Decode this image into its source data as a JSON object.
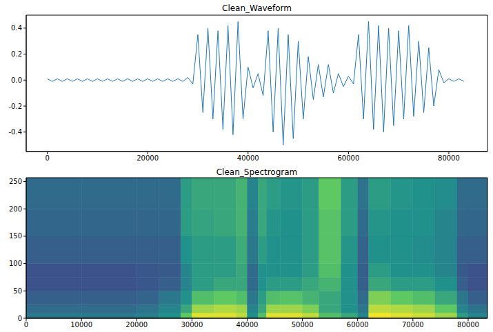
{
  "chart_data": [
    {
      "type": "line",
      "title": "Clean_Waveform",
      "color": "#1f77b4",
      "grid": false,
      "x": [
        0,
        1000,
        2000,
        3000,
        4000,
        5000,
        6000,
        7000,
        8000,
        9000,
        10000,
        11000,
        12000,
        13000,
        14000,
        15000,
        16000,
        17000,
        18000,
        19000,
        20000,
        21000,
        22000,
        23000,
        24000,
        25000,
        26000,
        27000,
        28000,
        29000,
        30000,
        31000,
        32000,
        33000,
        34000,
        35000,
        36000,
        37000,
        38000,
        39000,
        40000,
        41000,
        42000,
        43000,
        44000,
        45000,
        46000,
        47000,
        48000,
        49000,
        50000,
        51000,
        52000,
        53000,
        54000,
        55000,
        56000,
        57000,
        58000,
        59000,
        60000,
        61000,
        62000,
        63000,
        64000,
        65000,
        66000,
        67000,
        68000,
        69000,
        70000,
        71000,
        72000,
        73000,
        74000,
        75000,
        76000,
        77000,
        78000,
        79000,
        80000,
        81000,
        82000,
        83000
      ],
      "values": [
        0.01,
        -0.01,
        0.01,
        -0.01,
        0.01,
        -0.01,
        0.01,
        -0.01,
        0.01,
        -0.01,
        0.01,
        -0.01,
        0.01,
        -0.01,
        0.01,
        -0.01,
        0.01,
        -0.01,
        0.01,
        -0.01,
        0.01,
        -0.01,
        0.01,
        -0.01,
        0.01,
        -0.01,
        0.01,
        -0.01,
        0.02,
        -0.03,
        0.35,
        -0.25,
        0.4,
        -0.3,
        0.38,
        -0.38,
        0.42,
        -0.42,
        0.45,
        -0.3,
        0.1,
        -0.06,
        0.05,
        -0.12,
        0.38,
        -0.4,
        0.4,
        -0.5,
        0.35,
        -0.45,
        0.3,
        -0.3,
        0.18,
        -0.15,
        0.12,
        -0.13,
        0.12,
        -0.1,
        0.05,
        -0.05,
        0.03,
        -0.03,
        0.35,
        -0.3,
        0.45,
        -0.38,
        0.42,
        -0.4,
        0.4,
        -0.35,
        0.38,
        -0.3,
        0.42,
        -0.28,
        0.3,
        -0.25,
        0.25,
        -0.2,
        0.08,
        -0.02,
        0.01,
        -0.01,
        0.01,
        -0.01
      ],
      "xlim": [
        -4200,
        87700
      ],
      "xticks": [
        0,
        20000,
        40000,
        60000,
        80000
      ],
      "ylim": [
        -0.55,
        0.5
      ],
      "yticks": [
        -0.4,
        -0.2,
        {
          "value": 0,
          "label": "0.0"
        },
        0.2,
        0.4
      ]
    },
    {
      "type": "heatmap",
      "title": "Clean_Spectrogram",
      "grid": false,
      "x_bins": [
        0,
        10000,
        20000,
        24000,
        28000,
        30000,
        34000,
        38000,
        40000,
        42000,
        43500,
        46000,
        50000,
        53000,
        57000,
        60000,
        62000,
        66000,
        70000,
        74000,
        78000,
        80000,
        83500
      ],
      "y_bins": [
        0,
        10,
        25,
        50,
        75,
        100,
        150,
        200,
        257
      ],
      "cells": [
        [
          0.4,
          0.35,
          0.3,
          0.25,
          0.25,
          0.3,
          0.33,
          0.35
        ],
        [
          0.4,
          0.35,
          0.3,
          0.25,
          0.25,
          0.3,
          0.33,
          0.35
        ],
        [
          0.42,
          0.38,
          0.32,
          0.27,
          0.27,
          0.3,
          0.33,
          0.35
        ],
        [
          0.5,
          0.45,
          0.4,
          0.3,
          0.28,
          0.3,
          0.33,
          0.35
        ],
        [
          0.75,
          0.6,
          0.5,
          0.45,
          0.45,
          0.5,
          0.55,
          0.55
        ],
        [
          0.95,
          0.85,
          0.7,
          0.55,
          0.55,
          0.55,
          0.58,
          0.6
        ],
        [
          0.95,
          0.88,
          0.75,
          0.6,
          0.55,
          0.55,
          0.6,
          0.6
        ],
        [
          0.9,
          0.85,
          0.7,
          0.6,
          0.6,
          0.62,
          0.65,
          0.65
        ],
        [
          0.5,
          0.45,
          0.4,
          0.35,
          0.35,
          0.4,
          0.42,
          0.45
        ],
        [
          0.7,
          0.6,
          0.55,
          0.5,
          0.5,
          0.55,
          0.6,
          0.6
        ],
        [
          0.95,
          0.85,
          0.7,
          0.55,
          0.5,
          0.5,
          0.52,
          0.55
        ],
        [
          0.95,
          0.85,
          0.72,
          0.55,
          0.5,
          0.5,
          0.5,
          0.52
        ],
        [
          0.9,
          0.8,
          0.65,
          0.6,
          0.55,
          0.55,
          0.55,
          0.55
        ],
        [
          0.7,
          0.6,
          0.6,
          0.65,
          0.7,
          0.72,
          0.72,
          0.75
        ],
        [
          0.6,
          0.5,
          0.5,
          0.5,
          0.5,
          0.52,
          0.55,
          0.55
        ],
        [
          0.45,
          0.4,
          0.35,
          0.3,
          0.3,
          0.32,
          0.35,
          0.38
        ],
        [
          0.98,
          0.9,
          0.8,
          0.6,
          0.55,
          0.5,
          0.52,
          0.55
        ],
        [
          0.95,
          0.88,
          0.75,
          0.55,
          0.5,
          0.5,
          0.5,
          0.52
        ],
        [
          0.92,
          0.85,
          0.7,
          0.55,
          0.5,
          0.48,
          0.5,
          0.5
        ],
        [
          0.85,
          0.75,
          0.6,
          0.5,
          0.45,
          0.45,
          0.45,
          0.48
        ],
        [
          0.55,
          0.45,
          0.4,
          0.3,
          0.28,
          0.3,
          0.33,
          0.35
        ],
        [
          0.45,
          0.38,
          0.3,
          0.25,
          0.25,
          0.3,
          0.33,
          0.35
        ]
      ],
      "zlim": [
        0,
        1
      ],
      "xlim": [
        0,
        83500
      ],
      "xticks": [
        0,
        10000,
        20000,
        30000,
        40000,
        50000,
        60000,
        70000,
        80000
      ],
      "ylim": [
        0,
        257
      ],
      "yticks": [
        0,
        50,
        100,
        150,
        200,
        250
      ]
    }
  ]
}
